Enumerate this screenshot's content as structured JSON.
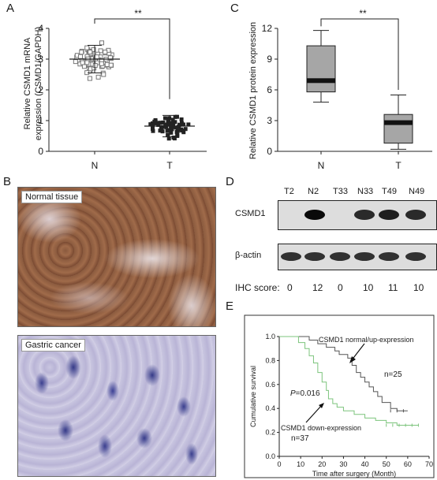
{
  "panels": {
    "a": "A",
    "b": "B",
    "c": "C",
    "d": "D",
    "e": "E"
  },
  "panel_a": {
    "ylabel_line1": "Relative CSMD1 mRNA",
    "ylabel_line2": "expression (CSMD1/GAPDH)",
    "significance": "**"
  },
  "panel_c": {
    "ylabel": "Relative CSMD1 protein expression",
    "significance": "**"
  },
  "panel_b": {
    "normal_label": "Normal tissue",
    "cancer_label": "Gastric cancer"
  },
  "panel_d": {
    "lanes": [
      "T2",
      "N2",
      "T33",
      "N33",
      "T49",
      "N49"
    ],
    "row_csmd1": "CSMD1",
    "row_actin": "β-actin",
    "ihc_label": "IHC score:",
    "ihc_scores": [
      "0",
      "12",
      "0",
      "10",
      "11",
      "10"
    ],
    "csmd1_band_intensity": [
      0,
      1,
      0,
      0.85,
      0.9,
      0.85
    ]
  },
  "panel_e": {
    "label_up": "CSMD1 normal/up-expression",
    "n_up": "n=25",
    "label_down": "CSMD1 down-expression",
    "n_down": "n=37",
    "pvalue": "P=0.016",
    "colors": {
      "up": "#555555",
      "down": "#7cc47c"
    }
  },
  "chart_data": [
    {
      "type": "scatter",
      "panel": "A",
      "categories": [
        "N",
        "T"
      ],
      "ylim": [
        0,
        4
      ],
      "yticks": [
        0,
        1,
        2,
        3,
        4
      ],
      "series": [
        {
          "name": "N",
          "mean": 3.0,
          "sd": 0.45,
          "range": [
            1.3,
            3.9
          ]
        },
        {
          "name": "T",
          "mean": 0.82,
          "sd": 0.35,
          "range": [
            0.2,
            1.6
          ]
        }
      ]
    },
    {
      "type": "box",
      "panel": "C",
      "categories": [
        "N",
        "T"
      ],
      "ylim": [
        0,
        12
      ],
      "yticks": [
        0,
        3,
        6,
        9,
        12
      ],
      "series": [
        {
          "name": "N",
          "min": 4.8,
          "q1": 5.8,
          "median": 6.9,
          "q3": 10.3,
          "max": 11.8
        },
        {
          "name": "T",
          "min": 0.2,
          "q1": 0.8,
          "median": 2.8,
          "q3": 3.6,
          "max": 5.5
        }
      ]
    },
    {
      "type": "line",
      "panel": "E",
      "xlabel": "Time after surgery (Month)",
      "ylabel": "Cumulative survival",
      "xlim": [
        0,
        70
      ],
      "ylim": [
        0,
        1.0
      ],
      "xticks": [
        0,
        10,
        20,
        30,
        40,
        50,
        60,
        70
      ],
      "yticks": [
        0.0,
        0.2,
        0.4,
        0.6,
        0.8,
        1.0
      ],
      "series": [
        {
          "name": "CSMD1 normal/up-expression",
          "x": [
            0,
            10,
            14,
            18,
            22,
            26,
            28,
            32,
            34,
            36,
            38,
            40,
            42,
            44,
            46,
            48,
            52,
            55,
            60
          ],
          "y": [
            1.0,
            1.0,
            0.97,
            0.94,
            0.91,
            0.88,
            0.85,
            0.82,
            0.76,
            0.7,
            0.66,
            0.62,
            0.58,
            0.54,
            0.5,
            0.45,
            0.4,
            0.38,
            0.38
          ]
        },
        {
          "name": "CSMD1 down-expression",
          "x": [
            0,
            6,
            9,
            12,
            14,
            16,
            18,
            20,
            22,
            23,
            25,
            27,
            30,
            35,
            40,
            45,
            50,
            55,
            65
          ],
          "y": [
            1.0,
            1.0,
            0.95,
            0.9,
            0.84,
            0.78,
            0.7,
            0.62,
            0.55,
            0.48,
            0.44,
            0.41,
            0.38,
            0.35,
            0.32,
            0.3,
            0.28,
            0.26,
            0.26
          ]
        }
      ]
    }
  ]
}
